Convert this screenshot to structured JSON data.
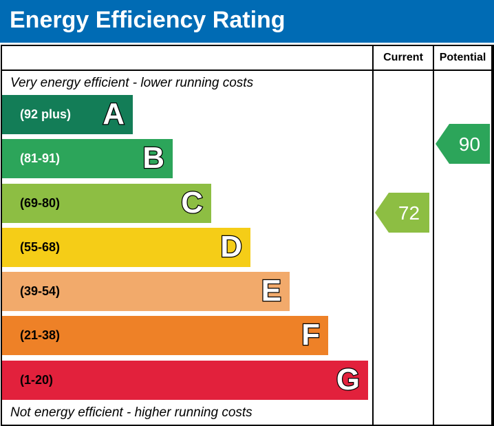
{
  "title": "Energy Efficiency Rating",
  "chart_data": {
    "type": "table",
    "columns": [
      "Current",
      "Potential"
    ],
    "top_note": "Very energy efficient - lower running costs",
    "bottom_note": "Not energy efficient - higher running costs",
    "bands": [
      {
        "letter": "A",
        "range": "(92 plus)",
        "color": "#137d57"
      },
      {
        "letter": "B",
        "range": "(81-91)",
        "color": "#2ca55a"
      },
      {
        "letter": "C",
        "range": "(69-80)",
        "color": "#8dbe43"
      },
      {
        "letter": "D",
        "range": "(55-68)",
        "color": "#f5cd17"
      },
      {
        "letter": "E",
        "range": "(39-54)",
        "color": "#f2aa6b"
      },
      {
        "letter": "F",
        "range": "(21-38)",
        "color": "#ee8127"
      },
      {
        "letter": "G",
        "range": "(1-20)",
        "color": "#e2213c"
      }
    ],
    "current": {
      "value": "72",
      "band": "C",
      "color": "#8dbe43"
    },
    "potential": {
      "value": "90",
      "band": "B",
      "color": "#2ca55a"
    }
  }
}
